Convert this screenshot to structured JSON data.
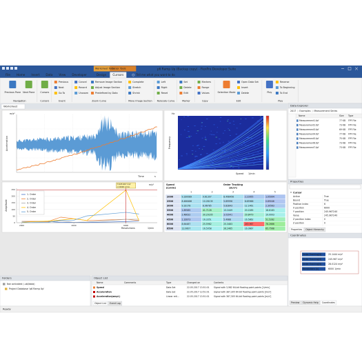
{
  "window": {
    "title": "p6 Ramp Up (Backup copy) - FlexPro Developer Suite",
    "context_tabs": [
      "Worksheet Tools",
      "Cursor Tools"
    ]
  },
  "ribbon": {
    "tabs": [
      "File",
      "Home",
      "Insert",
      "Data",
      "View",
      "Developer",
      "Design",
      "Cursors"
    ],
    "tell_me": "Tell me what you want to do",
    "groups": [
      {
        "label": "Navigation",
        "buttons": [
          "Previous Pane",
          "Next Pane"
        ]
      },
      {
        "label": "Cursors",
        "buttons": [
          "Cursors"
        ]
      },
      {
        "label": "Event",
        "buttons": [
          "Previous",
          "Next",
          "Go To"
        ]
      },
      {
        "label": "Zoom Curve",
        "buttons": [
          "Cancel",
          "Record",
          "Unzoom",
          "Remove Image Section",
          "Adjust Image Section",
          "Predefined by Data"
        ]
      },
      {
        "label": "Move Image Section",
        "buttons": [
          "Complete",
          "Stretch",
          "Shrink"
        ]
      },
      {
        "label": "Relocate Curve",
        "buttons": [
          "Left",
          "Right",
          "Reset"
        ]
      },
      {
        "label": "Marker",
        "buttons": [
          "Set",
          "Delete",
          "Edit"
        ]
      },
      {
        "label": "Copy",
        "buttons": [
          "Markers",
          "Range",
          "Values"
        ]
      },
      {
        "label": "Edit",
        "buttons": [
          "Selection Mode",
          "Open Data Set",
          "Insert",
          "Delete"
        ]
      },
      {
        "label": "Play",
        "buttons": [
          "Play",
          "Reverse",
          "To Beginning",
          "To End"
        ]
      }
    ]
  },
  "document_tab": "Worksheet",
  "waveform": {
    "y_label": "Acceleration",
    "y_unit": "m/s²",
    "x_label": "Time",
    "x_unit": "s"
  },
  "spectrogram": {
    "y_label": "Frequency",
    "y_unit": "Hz",
    "x_label": "Speed",
    "x_unit": "1/min"
  },
  "order_chart": {
    "y_label": "Amplitude",
    "y_unit": "m/s²",
    "x_label": "Revolutions",
    "x_unit": "1/min",
    "legend": [
      "1. Order",
      "2. Order",
      "3. Order",
      "4. Order",
      "5. Order"
    ],
    "colors": [
      "#4472c4",
      "#ed7d31",
      "#a5a5a5",
      "#ffc000",
      "#5b9bd5"
    ],
    "xlim": [
      1800,
      7200
    ],
    "xticks": [
      2000,
      4000,
      6000
    ],
    "ylim": [
      0,
      260
    ],
    "yticks": [
      0,
      50,
      100,
      150,
      200,
      250
    ],
    "cursor_box": [
      "f=245.967 m/s²",
      "n=6000 1/min"
    ]
  },
  "order_table": {
    "corner": [
      "Speed",
      "[1/min]"
    ],
    "title": [
      "Order Tracking",
      "[m/s²]"
    ],
    "columns": [
      1,
      2,
      3,
      4,
      5
    ],
    "rows": [
      {
        "speed": 2000,
        "values": [
          9.330089,
          9.61307,
          8.498456,
          2.23955,
          1.05994
        ]
      },
      {
        "speed": 2500,
        "values": [
          8.466486,
          10.28135,
          5.89996,
          8.65966,
          0.89046
        ]
      },
      {
        "speed": 3000,
        "values": [
          9.33178,
          8.96785,
          5.82843,
          12.1461,
          2.30563
        ]
      },
      {
        "speed": 3500,
        "values": [
          1.89585,
          41.7128,
          13.2449,
          20.2285,
          18.6183
        ]
      },
      {
        "speed": 4000,
        "values": [
          2.48632,
          30.29205,
          3.03941,
          29.8479,
          19.0003
        ]
      },
      {
        "speed": 4500,
        "values": [
          1.32873,
          16.3351,
          5.4988,
          16.5862,
          51.5282
        ]
      },
      {
        "speed": 6000,
        "values": [
          8.64487,
          25.5962,
          25.3483,
          245.967,
          78.2666
        ]
      },
      {
        "speed": 6500,
        "values": [
          12.0607,
          16.5958,
          26.2465,
          16.0667,
          65.7568
        ]
      }
    ]
  },
  "data_explorer": {
    "title": "Data Explorer",
    "path": [
      "2017",
      "Examples",
      "Measurement Series"
    ],
    "columns": [
      "Name",
      "Size",
      "Type"
    ],
    "items": [
      [
        "Measurement1.fpf",
        "77 KB",
        "FPF File"
      ],
      [
        "Measurement2.fpf",
        "73 KB",
        "FPF File"
      ],
      [
        "Measurement3.fpf",
        "69 KB",
        "FPF File"
      ],
      [
        "Measurement4.fpf",
        "77 KB",
        "FPF File"
      ],
      [
        "Measurement5.fpf",
        "75 KB",
        "FPF File"
      ],
      [
        "Measurement6.fpf",
        "73 KB",
        "FPF File"
      ],
      [
        "Measurement7.fpf",
        "73 KB",
        "FPF File"
      ]
    ]
  },
  "properties": {
    "title": "Properties",
    "section": "Cursor",
    "rows": [
      [
        "Active",
        "True"
      ],
      [
        "Bound",
        "True"
      ],
      [
        "Position index",
        6
      ],
      [
        "X position",
        6000
      ],
      [
        "Y position",
        "245.967240"
      ],
      [
        "Value",
        "245.967240"
      ],
      [
        "Z position index",
        0
      ],
      [
        "Z position",
        0
      ]
    ],
    "tabs": [
      "Properties",
      "Object Hierarchy"
    ]
  },
  "coordinates": {
    "title": "Coordinates",
    "rows": [
      [
        "Order Tracking[4]",
        "25.1444 m/s²"
      ],
      [
        "Order Tracking[4]",
        "245.967 m/s²"
      ],
      [
        "Order Tracking[4]",
        "28.0124 m/s²"
      ],
      [
        "Revolutions [x]",
        "6000 1/min"
      ]
    ],
    "tabs": [
      "Preview",
      "Dynamic Help",
      "Coordinates"
    ]
  },
  "folders": {
    "title": "Folders",
    "items": [
      "Not activated (.ubl/data)",
      "Project Database 'p6 Ramp Up'"
    ]
  },
  "object_list": {
    "title": "Object List",
    "columns": [
      "Name",
      "Comments",
      "Type",
      "Changed on",
      "Contents"
    ],
    "rows": [
      [
        "Speed",
        "Data Set",
        "22.05.2017 13:51:01",
        "Signal with 3,982 64-bit floating point points [1/min]"
      ],
      [
        "Acceleration",
        "Data Set",
        "22.05.2017 13:51:01",
        "Signal with 387,305 64-bit floating point points [m/s²]"
      ],
      [
        "Acceleration(ampl.)",
        "Linear reti...",
        "22.05.2017 13:51:01",
        "Signal with 387,305 64-bit floating point points [m/s²]"
      ]
    ],
    "tabs": [
      "Object List",
      "Event Log"
    ]
  },
  "status": "Ready"
}
